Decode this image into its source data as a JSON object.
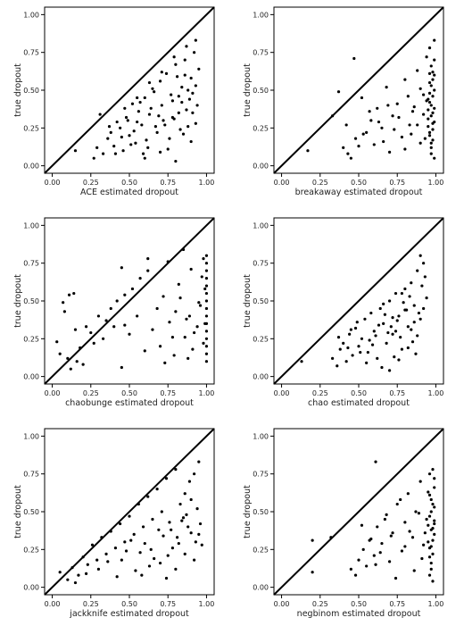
{
  "figure": {
    "shared": {
      "ylabel": "true dropout",
      "xticks": [
        "0.00",
        "0.25",
        "0.50",
        "0.75",
        "1.00"
      ],
      "yticks": [
        "0.00",
        "0.25",
        "0.50",
        "0.75",
        "1.00"
      ],
      "xlim": [
        0,
        1
      ],
      "ylim": [
        0,
        1
      ],
      "point_color": "#000000"
    }
  },
  "chart_data": [
    {
      "type": "scatter",
      "xlabel": "ACE estimated dropout",
      "ylabel": "true dropout",
      "xlim": [
        0,
        1
      ],
      "ylim": [
        0,
        1
      ],
      "reference_line": "y = x",
      "x": [
        0.15,
        0.27,
        0.31,
        0.33,
        0.36,
        0.38,
        0.4,
        0.42,
        0.44,
        0.46,
        0.48,
        0.5,
        0.52,
        0.54,
        0.56,
        0.58,
        0.6,
        0.62,
        0.64,
        0.66,
        0.68,
        0.7,
        0.72,
        0.74,
        0.76,
        0.78,
        0.8,
        0.82,
        0.84,
        0.86,
        0.88,
        0.9,
        0.92,
        0.94,
        0.95,
        0.29,
        0.37,
        0.41,
        0.45,
        0.49,
        0.53,
        0.57,
        0.61,
        0.65,
        0.69,
        0.73,
        0.77,
        0.81,
        0.85,
        0.89,
        0.93,
        0.47,
        0.51,
        0.55,
        0.59,
        0.63,
        0.67,
        0.71,
        0.75,
        0.79,
        0.83,
        0.87,
        0.91,
        0.55,
        0.63,
        0.71,
        0.79,
        0.87,
        0.93,
        0.6,
        0.7,
        0.8,
        0.9,
        0.86,
        0.88,
        0.91,
        0.93,
        0.84,
        0.82,
        0.78
      ],
      "y": [
        0.1,
        0.05,
        0.34,
        0.08,
        0.18,
        0.22,
        0.13,
        0.29,
        0.25,
        0.1,
        0.32,
        0.2,
        0.41,
        0.15,
        0.36,
        0.27,
        0.45,
        0.12,
        0.38,
        0.49,
        0.22,
        0.56,
        0.3,
        0.61,
        0.18,
        0.43,
        0.67,
        0.35,
        0.52,
        0.7,
        0.26,
        0.58,
        0.75,
        0.4,
        0.64,
        0.12,
        0.26,
        0.08,
        0.19,
        0.3,
        0.23,
        0.42,
        0.17,
        0.51,
        0.33,
        0.27,
        0.47,
        0.59,
        0.21,
        0.44,
        0.53,
        0.38,
        0.14,
        0.29,
        0.08,
        0.34,
        0.26,
        0.4,
        0.11,
        0.31,
        0.24,
        0.37,
        0.48,
        0.45,
        0.55,
        0.62,
        0.72,
        0.79,
        0.83,
        0.05,
        0.09,
        0.03,
        0.16,
        0.6,
        0.5,
        0.35,
        0.28,
        0.42,
        0.46,
        0.32
      ]
    },
    {
      "type": "scatter",
      "xlabel": "breakaway estimated dropout",
      "ylabel": "true dropout",
      "xlim": [
        0,
        1
      ],
      "ylim": [
        0,
        1
      ],
      "reference_line": "y = x",
      "x": [
        0.17,
        0.33,
        0.37,
        0.47,
        0.4,
        0.43,
        0.48,
        0.52,
        0.55,
        0.58,
        0.6,
        0.62,
        0.65,
        0.68,
        0.7,
        0.72,
        0.75,
        0.78,
        0.8,
        0.83,
        0.85,
        0.88,
        0.9,
        0.92,
        0.94,
        0.95,
        0.96,
        0.97,
        0.98,
        0.99,
        0.96,
        0.97,
        0.98,
        0.99,
        0.95,
        0.96,
        0.97,
        0.98,
        0.99,
        0.96,
        0.97,
        0.98,
        0.99,
        0.95,
        0.96,
        0.97,
        0.98,
        0.99,
        0.96,
        0.97,
        0.98,
        0.99,
        0.95,
        0.96,
        0.97,
        0.98,
        0.99,
        0.94,
        0.93,
        0.92,
        0.9,
        0.88,
        0.86,
        0.84,
        0.82,
        0.8,
        0.76,
        0.73,
        0.69,
        0.66,
        0.63,
        0.57,
        0.53,
        0.5,
        0.45,
        0.42
      ],
      "y": [
        0.1,
        0.33,
        0.49,
        0.71,
        0.12,
        0.08,
        0.18,
        0.45,
        0.22,
        0.3,
        0.14,
        0.38,
        0.25,
        0.52,
        0.09,
        0.33,
        0.41,
        0.19,
        0.57,
        0.27,
        0.36,
        0.63,
        0.15,
        0.47,
        0.72,
        0.31,
        0.55,
        0.4,
        0.24,
        0.6,
        0.78,
        0.12,
        0.35,
        0.5,
        0.44,
        0.2,
        0.66,
        0.28,
        0.05,
        0.42,
        0.53,
        0.17,
        0.38,
        0.26,
        0.61,
        0.33,
        0.46,
        0.7,
        0.22,
        0.08,
        0.57,
        0.29,
        0.37,
        0.48,
        0.15,
        0.62,
        0.83,
        0.43,
        0.18,
        0.34,
        0.51,
        0.27,
        0.39,
        0.21,
        0.46,
        0.11,
        0.32,
        0.24,
        0.4,
        0.16,
        0.29,
        0.36,
        0.21,
        0.13,
        0.05,
        0.27
      ]
    },
    {
      "type": "scatter",
      "xlabel": "chaobunge estimated dropout",
      "ylabel": "true dropout",
      "xlim": [
        0,
        1
      ],
      "ylim": [
        0,
        1
      ],
      "reference_line": "y = x",
      "x": [
        0.03,
        0.05,
        0.07,
        0.1,
        0.12,
        0.14,
        0.16,
        0.18,
        0.2,
        0.22,
        0.25,
        0.27,
        0.3,
        0.33,
        0.35,
        0.38,
        0.4,
        0.42,
        0.45,
        0.47,
        0.5,
        0.52,
        0.55,
        0.57,
        0.6,
        0.62,
        0.65,
        0.68,
        0.7,
        0.72,
        0.75,
        0.78,
        0.8,
        0.82,
        0.85,
        0.87,
        0.88,
        0.9,
        0.92,
        0.95,
        0.97,
        0.98,
        0.99,
        1.0,
        1.0,
        1.0,
        1.0,
        1.0,
        1.0,
        1.0,
        1.0,
        1.0,
        1.0,
        1.0,
        1.0,
        1.0,
        1.0,
        1.0,
        0.99,
        0.98,
        0.96,
        0.94,
        0.91,
        0.89,
        0.86,
        0.83,
        0.79,
        0.76,
        0.73,
        0.11,
        0.08,
        0.15,
        0.45,
        0.47,
        0.62
      ],
      "y": [
        0.23,
        0.15,
        0.49,
        0.12,
        0.05,
        0.55,
        0.1,
        0.19,
        0.08,
        0.33,
        0.29,
        0.22,
        0.4,
        0.25,
        0.37,
        0.45,
        0.33,
        0.5,
        0.06,
        0.54,
        0.28,
        0.58,
        0.4,
        0.65,
        0.17,
        0.7,
        0.31,
        0.45,
        0.2,
        0.53,
        0.76,
        0.26,
        0.43,
        0.61,
        0.84,
        0.38,
        0.12,
        0.71,
        0.29,
        0.49,
        0.66,
        0.78,
        0.35,
        0.8,
        0.75,
        0.7,
        0.65,
        0.6,
        0.55,
        0.5,
        0.45,
        0.4,
        0.35,
        0.3,
        0.25,
        0.2,
        0.15,
        0.1,
        0.58,
        0.22,
        0.47,
        0.33,
        0.18,
        0.4,
        0.26,
        0.52,
        0.14,
        0.36,
        0.09,
        0.54,
        0.43,
        0.31,
        0.72,
        0.34,
        0.78
      ]
    },
    {
      "type": "scatter",
      "xlabel": "chao estimated dropout",
      "ylabel": "true dropout",
      "xlim": [
        0,
        1
      ],
      "ylim": [
        0,
        1
      ],
      "reference_line": "y = x",
      "x": [
        0.13,
        0.33,
        0.36,
        0.38,
        0.4,
        0.42,
        0.44,
        0.46,
        0.48,
        0.5,
        0.52,
        0.54,
        0.56,
        0.58,
        0.6,
        0.62,
        0.64,
        0.66,
        0.68,
        0.7,
        0.72,
        0.74,
        0.76,
        0.78,
        0.8,
        0.82,
        0.84,
        0.86,
        0.88,
        0.9,
        0.92,
        0.94,
        0.37,
        0.43,
        0.49,
        0.55,
        0.61,
        0.67,
        0.73,
        0.79,
        0.85,
        0.91,
        0.45,
        0.51,
        0.57,
        0.63,
        0.69,
        0.75,
        0.81,
        0.87,
        0.93,
        0.59,
        0.65,
        0.71,
        0.77,
        0.83,
        0.89,
        0.66,
        0.72,
        0.78,
        0.84,
        0.9,
        0.7,
        0.76,
        0.82,
        0.88,
        0.92,
        0.86,
        0.8,
        0.74
      ],
      "y": [
        0.1,
        0.12,
        0.07,
        0.18,
        0.22,
        0.1,
        0.28,
        0.14,
        0.32,
        0.2,
        0.25,
        0.38,
        0.16,
        0.42,
        0.3,
        0.12,
        0.45,
        0.35,
        0.22,
        0.5,
        0.28,
        0.55,
        0.4,
        0.18,
        0.58,
        0.33,
        0.62,
        0.47,
        0.7,
        0.38,
        0.75,
        0.52,
        0.26,
        0.19,
        0.36,
        0.09,
        0.27,
        0.41,
        0.13,
        0.49,
        0.23,
        0.6,
        0.31,
        0.16,
        0.24,
        0.34,
        0.29,
        0.37,
        0.44,
        0.15,
        0.66,
        0.21,
        0.06,
        0.33,
        0.26,
        0.53,
        0.42,
        0.48,
        0.39,
        0.55,
        0.31,
        0.8,
        0.04,
        0.11,
        0.19,
        0.27,
        0.45,
        0.36,
        0.44,
        0.3
      ]
    },
    {
      "type": "scatter",
      "xlabel": "jackknife estimated dropout",
      "ylabel": "true dropout",
      "xlim": [
        0,
        1
      ],
      "ylim": [
        0,
        1
      ],
      "reference_line": "y = x",
      "x": [
        0.05,
        0.1,
        0.13,
        0.17,
        0.2,
        0.23,
        0.26,
        0.29,
        0.32,
        0.35,
        0.38,
        0.41,
        0.44,
        0.47,
        0.5,
        0.53,
        0.56,
        0.59,
        0.62,
        0.65,
        0.68,
        0.71,
        0.74,
        0.77,
        0.8,
        0.83,
        0.86,
        0.89,
        0.92,
        0.95,
        0.96,
        0.97,
        0.15,
        0.22,
        0.3,
        0.36,
        0.42,
        0.48,
        0.54,
        0.6,
        0.66,
        0.72,
        0.78,
        0.84,
        0.9,
        0.94,
        0.45,
        0.51,
        0.57,
        0.63,
        0.69,
        0.75,
        0.81,
        0.87,
        0.93,
        0.58,
        0.64,
        0.7,
        0.76,
        0.82,
        0.88,
        0.74,
        0.8,
        0.86,
        0.92,
        0.95,
        0.9,
        0.85
      ],
      "y": [
        0.1,
        0.05,
        0.13,
        0.08,
        0.2,
        0.15,
        0.28,
        0.18,
        0.33,
        0.22,
        0.37,
        0.26,
        0.42,
        0.3,
        0.47,
        0.35,
        0.55,
        0.4,
        0.6,
        0.45,
        0.65,
        0.5,
        0.72,
        0.38,
        0.78,
        0.55,
        0.62,
        0.7,
        0.75,
        0.83,
        0.42,
        0.28,
        0.03,
        0.09,
        0.12,
        0.17,
        0.07,
        0.24,
        0.11,
        0.29,
        0.19,
        0.34,
        0.26,
        0.44,
        0.36,
        0.52,
        0.18,
        0.31,
        0.23,
        0.14,
        0.38,
        0.21,
        0.33,
        0.48,
        0.3,
        0.08,
        0.25,
        0.16,
        0.43,
        0.29,
        0.4,
        0.06,
        0.12,
        0.22,
        0.18,
        0.35,
        0.58,
        0.46
      ]
    },
    {
      "type": "scatter",
      "xlabel": "negbinom estimated dropout",
      "ylabel": "true dropout",
      "xlim": [
        0,
        1
      ],
      "ylim": [
        0,
        1
      ],
      "reference_line": "y = x",
      "x": [
        0.2,
        0.2,
        0.32,
        0.45,
        0.48,
        0.5,
        0.53,
        0.55,
        0.58,
        0.6,
        0.62,
        0.65,
        0.68,
        0.7,
        0.72,
        0.75,
        0.78,
        0.8,
        0.82,
        0.85,
        0.87,
        0.9,
        0.92,
        0.94,
        0.95,
        0.96,
        0.97,
        0.98,
        0.99,
        0.96,
        0.97,
        0.98,
        0.99,
        0.95,
        0.96,
        0.97,
        0.98,
        0.99,
        0.96,
        0.97,
        0.98,
        0.99,
        0.95,
        0.96,
        0.97,
        0.98,
        0.99,
        0.96,
        0.97,
        0.98,
        0.99,
        0.93,
        0.91,
        0.89,
        0.86,
        0.83,
        0.8,
        0.77,
        0.74,
        0.71,
        0.67,
        0.64,
        0.61,
        0.57,
        0.52,
        0.61
      ],
      "y": [
        0.1,
        0.31,
        0.33,
        0.12,
        0.08,
        0.18,
        0.25,
        0.14,
        0.32,
        0.21,
        0.4,
        0.29,
        0.48,
        0.17,
        0.36,
        0.55,
        0.24,
        0.43,
        0.62,
        0.33,
        0.5,
        0.7,
        0.28,
        0.45,
        0.63,
        0.2,
        0.38,
        0.55,
        0.72,
        0.47,
        0.12,
        0.31,
        0.66,
        0.41,
        0.26,
        0.58,
        0.78,
        0.35,
        0.08,
        0.5,
        0.22,
        0.44,
        0.3,
        0.61,
        0.16,
        0.39,
        0.53,
        0.75,
        0.27,
        0.04,
        0.42,
        0.36,
        0.19,
        0.49,
        0.11,
        0.37,
        0.27,
        0.58,
        0.06,
        0.34,
        0.45,
        0.23,
        0.15,
        0.31,
        0.41,
        0.83
      ]
    }
  ]
}
